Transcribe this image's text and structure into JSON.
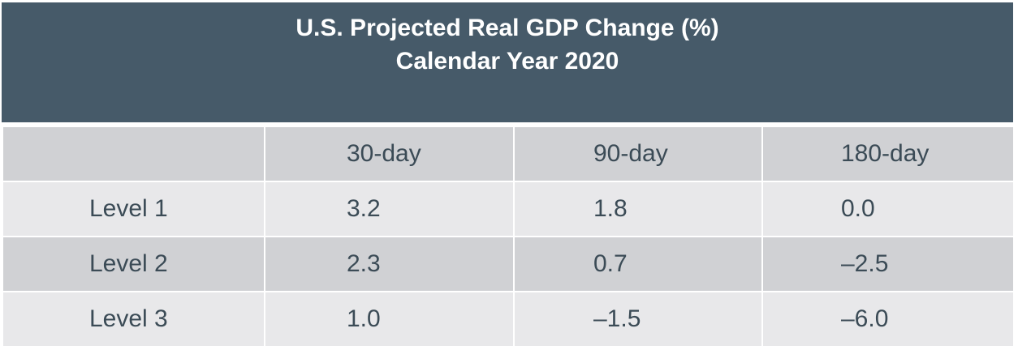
{
  "chart_data": {
    "type": "table",
    "title_line1": "U.S. Projected Real GDP Change (%)",
    "title_line2": "Calendar Year 2020",
    "columns": [
      "",
      "30-day",
      "90-day",
      "180-day"
    ],
    "rows": [
      {
        "label": "Level 1",
        "values": [
          "3.2",
          "1.8",
          "0.0"
        ]
      },
      {
        "label": "Level 2",
        "values": [
          "2.3",
          "0.7",
          "–2.5"
        ]
      },
      {
        "label": "Level 3",
        "values": [
          "1.0",
          "–1.5",
          "–6.0"
        ]
      }
    ]
  },
  "colors": {
    "title_background": "#465a69",
    "header_row": "#d0d1d4",
    "light_row": "#e8e8ea",
    "text": "#3b4b56"
  }
}
